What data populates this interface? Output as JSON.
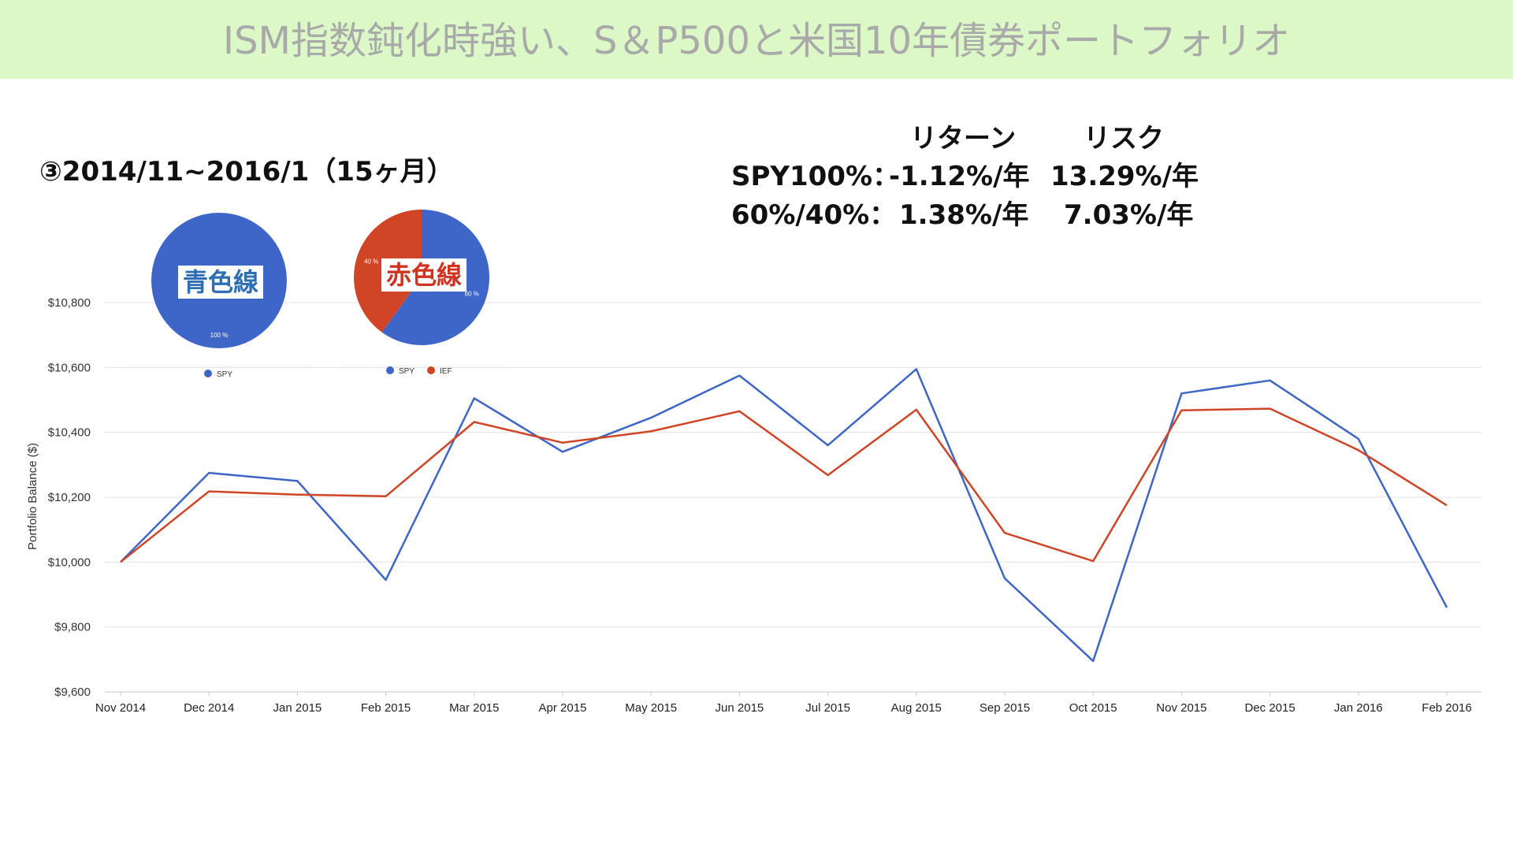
{
  "title": "ISM指数鈍化時強い、S＆P500と米国10年債券ポートフォリオ",
  "period_label": "③2014/11~2016/1（15ヶ月）",
  "stats": {
    "header_return": "リターン",
    "header_risk": "リスク",
    "rows": [
      {
        "label": "SPY100%：",
        "return": "-1.12%/年",
        "risk": "13.29%/年"
      },
      {
        "label": "60%/40%：",
        "return": "1.38%/年",
        "risk": "7.03%/年"
      }
    ]
  },
  "pies": [
    {
      "overlay_label": "青色線",
      "overlay_color": "#2e6eb5",
      "slices": [
        {
          "name": "SPY",
          "value": 100,
          "label": "100 %",
          "color": "#3e66c8"
        }
      ]
    },
    {
      "overlay_label": "赤色線",
      "overlay_color": "#d0331f",
      "slices": [
        {
          "name": "SPY",
          "value": 60,
          "label": "60 %",
          "color": "#3e66c8"
        },
        {
          "name": "IEF",
          "value": 40,
          "label": "40 %",
          "color": "#cf4526"
        }
      ]
    }
  ],
  "chart_data": {
    "type": "line",
    "ylabel": "Portfolio Balance ($)",
    "xlabel": "",
    "categories": [
      "Nov 2014",
      "Dec 2014",
      "Jan 2015",
      "Feb 2015",
      "Mar 2015",
      "Apr 2015",
      "May 2015",
      "Jun 2015",
      "Jul 2015",
      "Aug 2015",
      "Sep 2015",
      "Oct 2015",
      "Nov 2015",
      "Dec 2015",
      "Jan 2016",
      "Feb 2016"
    ],
    "ylim": [
      9600,
      10800
    ],
    "yticks": [
      9600,
      9800,
      10000,
      10200,
      10400,
      10600,
      10800
    ],
    "ytick_labels": [
      "$9,600",
      "$9,800",
      "$10,000",
      "$10,200",
      "$10,400",
      "$10,600",
      "$10,800"
    ],
    "grid": true,
    "series": [
      {
        "color": "#3e66c8",
        "values": [
          10000,
          10275,
          10250,
          9945,
          10505,
          10340,
          10445,
          10575,
          10360,
          10595,
          9950,
          9695,
          10520,
          10560,
          10380,
          9860
        ]
      },
      {
        "color": "#cf4526",
        "values": [
          10000,
          10218,
          10208,
          10203,
          10432,
          10368,
          10403,
          10465,
          10268,
          10470,
          10090,
          10003,
          10468,
          10473,
          10345,
          10175
        ]
      }
    ]
  }
}
